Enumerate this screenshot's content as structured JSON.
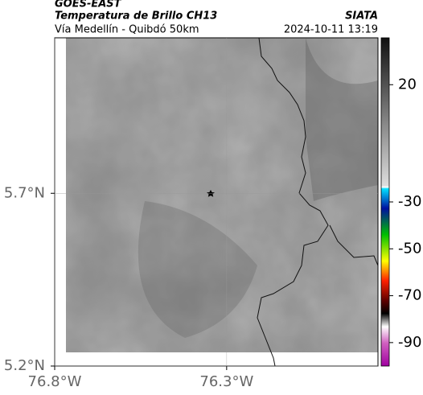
{
  "header": {
    "title": "GOES-EAST",
    "subtitle": "Temperatura de Brillo CH13",
    "location": "Vía Medellín - Quibdó 50km",
    "source": "SIATA",
    "datetime": "2024-10-11 13:19"
  },
  "map": {
    "xlim": [
      -76.8,
      -75.86
    ],
    "ylim": [
      5.2,
      6.15
    ],
    "xticks": [
      {
        "value": -76.8,
        "label": "76.8°W"
      },
      {
        "value": -76.3,
        "label": "76.3°W"
      }
    ],
    "yticks": [
      {
        "value": 5.2,
        "label": "5.2°N"
      },
      {
        "value": 5.7,
        "label": "5.7°N"
      }
    ]
  },
  "colorbar": {
    "lim": [
      -100,
      40
    ],
    "ticks": [
      20,
      -30,
      -50,
      -70,
      -90
    ]
  }
}
